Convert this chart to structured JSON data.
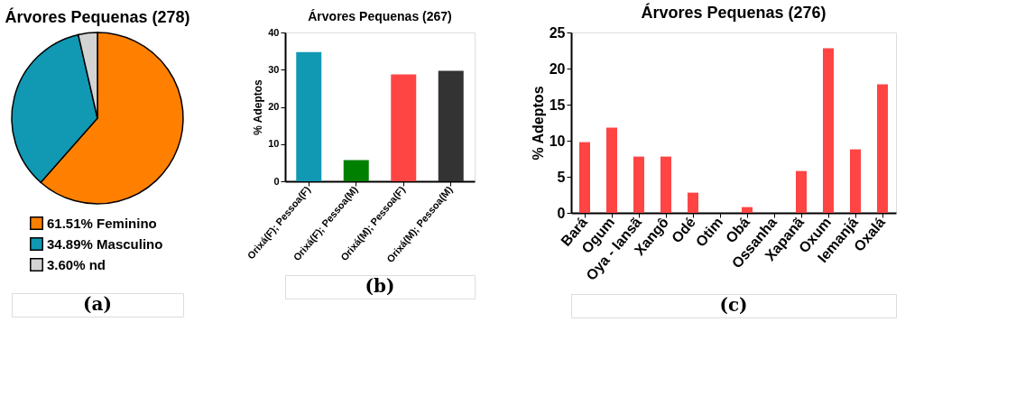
{
  "chart_data": [
    {
      "type": "pie",
      "title": "Árvores Pequenas (278)",
      "categories": [
        "Feminino",
        "Masculino",
        "nd"
      ],
      "values": [
        61.51,
        34.89,
        3.6
      ],
      "value_labels": [
        "61.51%",
        "34.89%",
        "3.60%"
      ],
      "colors": [
        "#ff8000",
        "#1199b4",
        "#d3d3d3"
      ],
      "legend": "bottom",
      "annotations": [
        "(a)"
      ]
    },
    {
      "type": "bar",
      "title": "Árvores Pequenas (267)",
      "ylabel": "% Adeptos",
      "categories": [
        "Orixá(F); Pessoa(F)",
        "Orixá(F); Pessoa(M)",
        "Orixá(M); Pessoa(F)",
        "Orixá(M); Pessoa(M)"
      ],
      "values": [
        34.7,
        5.7,
        28.7,
        29.7
      ],
      "colors": [
        "#1199b4",
        "#008000",
        "#ff4444",
        "#333333"
      ],
      "ylim": [
        0,
        40
      ],
      "yticks": [
        0,
        10,
        20,
        30,
        40
      ],
      "grid": false,
      "legend": false,
      "annotations": [
        "(b)"
      ]
    },
    {
      "type": "bar",
      "title": "Árvores Pequenas (276)",
      "ylabel": "% Adeptos",
      "categories": [
        "Bará",
        "Ogum",
        "Oya - Iansã",
        "Xangô",
        "Odé",
        "Otim",
        "Obá",
        "Ossanha",
        "Xapanã",
        "Oxum",
        "Iemanjá",
        "Oxalá"
      ],
      "values": [
        9.8,
        11.8,
        7.8,
        7.8,
        2.8,
        0,
        0.8,
        0,
        5.8,
        22.8,
        8.8,
        17.8
      ],
      "color": "#ff4444",
      "ylim": [
        0,
        25
      ],
      "yticks": [
        0,
        5,
        10,
        15,
        20,
        25
      ],
      "grid": false,
      "legend": false,
      "annotations": [
        "(c)"
      ]
    }
  ]
}
